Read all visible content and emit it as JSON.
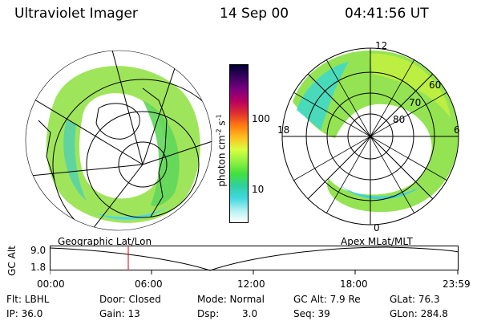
{
  "header": {
    "title": "Ultraviolet Imager",
    "date": "14 Sep 00",
    "time": "04:41:56 UT"
  },
  "colorbar": {
    "label": "photon cm-2 s-1",
    "label_main": "photon cm",
    "label_exp1": "-2",
    "label_mid": "s",
    "label_exp2": "-1",
    "ticks": [
      "100",
      "10"
    ],
    "colors": [
      "#000033",
      "#3a0060",
      "#7a0080",
      "#b80060",
      "#e03030",
      "#ff7a10",
      "#ffc020",
      "#d8ff40",
      "#90f040",
      "#40e040",
      "#30d0a0",
      "#40d8e0",
      "#b0f0f0",
      "#ffffff"
    ]
  },
  "polar_plot": {
    "mlt_labels": [
      "12",
      "18",
      "6",
      "0"
    ],
    "lat_labels": [
      "60",
      "70",
      "80"
    ]
  },
  "altitude_strip": {
    "left_label": "Geographic Lat/Lon",
    "right_label": "Apex MLat/MLT",
    "axis_title": "GC Alt",
    "y_ticks": [
      "9.0",
      "1.8"
    ],
    "x_ticks": [
      "00:00",
      "06:00",
      "12:00",
      "18:00",
      "23:59"
    ]
  },
  "info": {
    "flt": "Flt: LBHL",
    "ip": "IP: 36.0",
    "door": "Door: Closed",
    "gain": "Gain: 13",
    "mode": "Mode: Normal",
    "dsp_label": "Dsp:",
    "dsp_value": "3.0",
    "gc_alt": "GC Alt: 7.9 Re",
    "seq": "Seq: 39",
    "glat": "GLat: 76.3",
    "glon": "GLon: 284.8"
  }
}
